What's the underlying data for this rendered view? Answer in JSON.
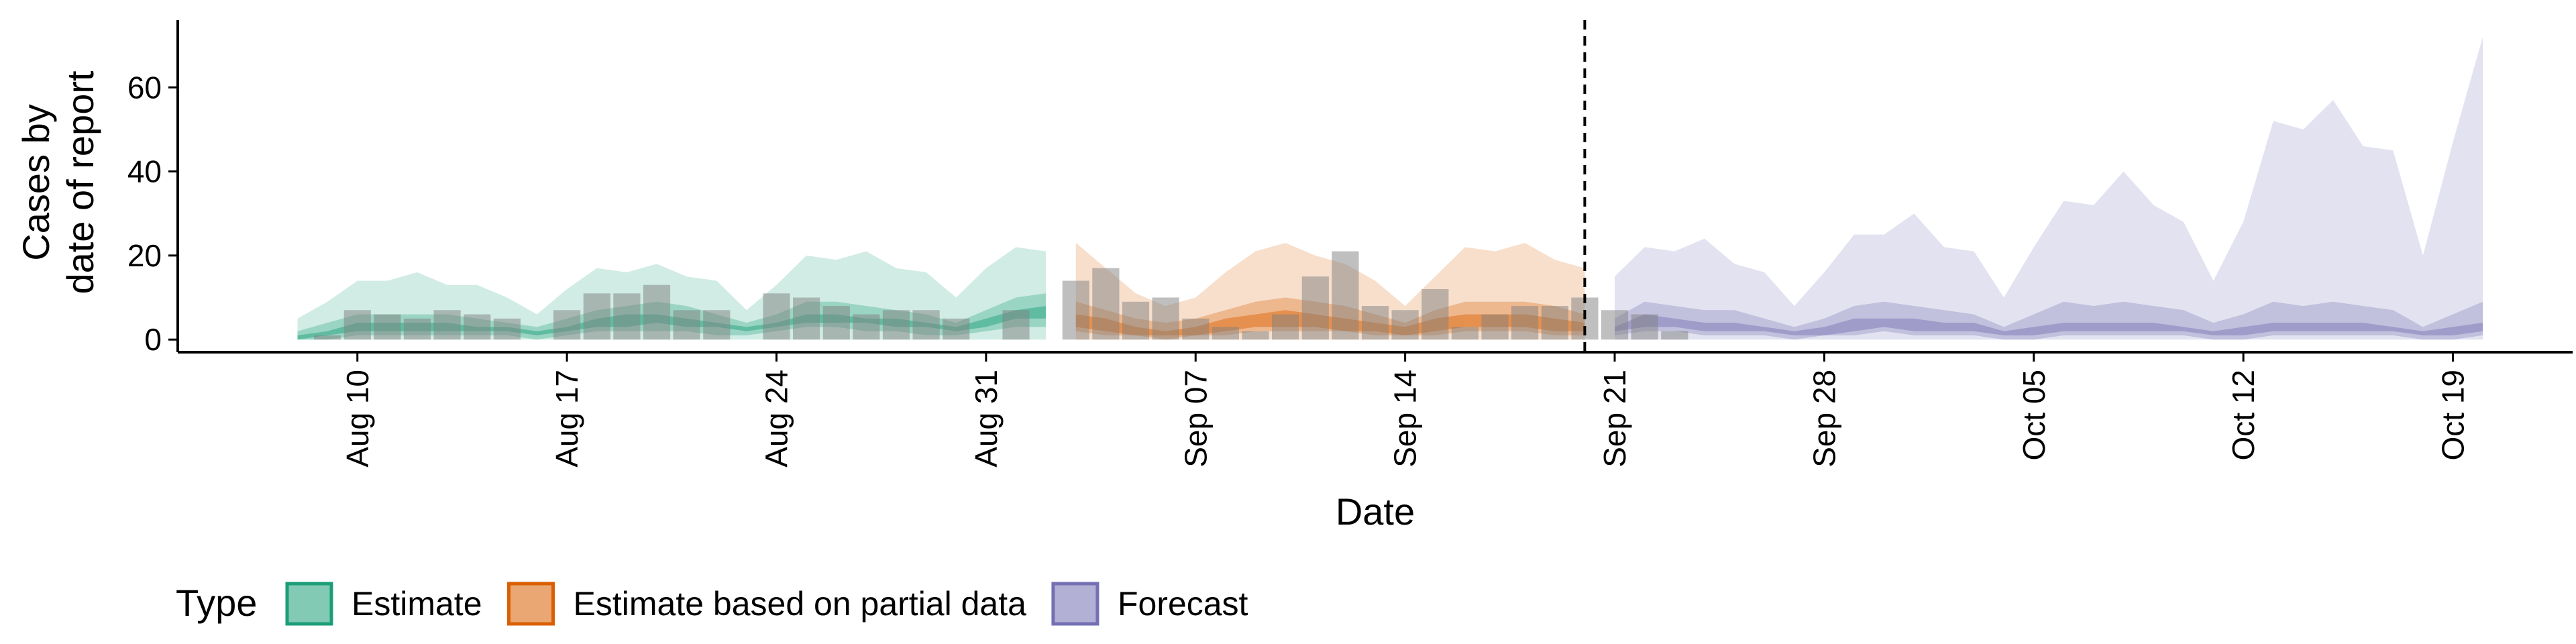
{
  "chart_data": {
    "type": "area",
    "title": "",
    "xlabel": "Date",
    "ylabel_lines": [
      "Cases by",
      "date of report"
    ],
    "ylim": [
      -3,
      76
    ],
    "y_ticks": [
      0,
      20,
      40,
      60
    ],
    "x_ticks": [
      {
        "date": "2020-08-10",
        "label": "Aug 10"
      },
      {
        "date": "2020-08-17",
        "label": "Aug 17"
      },
      {
        "date": "2020-08-24",
        "label": "Aug 24"
      },
      {
        "date": "2020-08-31",
        "label": "Aug 31"
      },
      {
        "date": "2020-09-07",
        "label": "Sep 07"
      },
      {
        "date": "2020-09-14",
        "label": "Sep 14"
      },
      {
        "date": "2020-09-21",
        "label": "Sep 21"
      },
      {
        "date": "2020-09-28",
        "label": "Sep 28"
      },
      {
        "date": "2020-10-05",
        "label": "Oct 05"
      },
      {
        "date": "2020-10-12",
        "label": "Oct 12"
      },
      {
        "date": "2020-10-19",
        "label": "Oct 19"
      }
    ],
    "xlim": [
      "2020-08-04",
      "2020-10-23"
    ],
    "vline_date": "2020-09-20",
    "grid": false,
    "legend": {
      "title": "Type",
      "placement": "bottom-left"
    },
    "colors": {
      "Estimate": "#1b9e77",
      "Estimate based on partial data": "#d95f02",
      "Forecast": "#7570b3",
      "bars": "#808080"
    },
    "observed_cases": {
      "start": "2020-08-09",
      "values": [
        1,
        7,
        6,
        5,
        7,
        6,
        5,
        0,
        7,
        11,
        11,
        13,
        7,
        7,
        0,
        11,
        10,
        8,
        6,
        7,
        7,
        5,
        0,
        7,
        0,
        14,
        17,
        9,
        10,
        5,
        3,
        2,
        6,
        15,
        21,
        8,
        7,
        12,
        3,
        6,
        8,
        8,
        10,
        7,
        6,
        2
      ]
    },
    "series": [
      {
        "name": "Estimate",
        "start": "2020-08-08",
        "outer_upper": [
          5,
          9,
          14,
          14,
          16,
          13,
          13,
          10,
          6,
          12,
          17,
          16,
          18,
          15,
          14,
          7,
          13,
          20,
          19,
          21,
          17,
          16,
          10,
          17,
          22,
          21
        ],
        "outer_lower": [
          0,
          0,
          0,
          0,
          0,
          0,
          0,
          0,
          0,
          0,
          0,
          0,
          0,
          0,
          0,
          0,
          0,
          0,
          0,
          0,
          0,
          0,
          0,
          0,
          0,
          0
        ],
        "inner_upper": [
          2,
          4,
          6,
          6,
          6,
          6,
          5,
          4,
          3,
          5,
          7,
          8,
          9,
          8,
          6,
          4,
          6,
          9,
          9,
          8,
          7,
          6,
          4,
          7,
          10,
          11
        ],
        "inner_lower": [
          0,
          0,
          1,
          1,
          1,
          1,
          1,
          1,
          0,
          1,
          2,
          2,
          2,
          2,
          1,
          1,
          2,
          3,
          3,
          2,
          2,
          1,
          1,
          2,
          3,
          3
        ],
        "mid_upper": [
          1,
          2,
          4,
          4,
          4,
          4,
          3,
          3,
          2,
          3,
          5,
          6,
          6,
          5,
          4,
          3,
          4,
          6,
          6,
          5,
          5,
          4,
          3,
          5,
          7,
          8
        ],
        "mid_lower": [
          0,
          1,
          2,
          2,
          2,
          2,
          2,
          2,
          1,
          2,
          3,
          3,
          4,
          3,
          3,
          2,
          3,
          4,
          4,
          4,
          3,
          3,
          2,
          3,
          5,
          5
        ]
      },
      {
        "name": "Estimate based on partial data",
        "start": "2020-09-03",
        "outer_upper": [
          23,
          17,
          11,
          8,
          10,
          16,
          21,
          23,
          20,
          18,
          14,
          8,
          15,
          22,
          21,
          23,
          19,
          17
        ],
        "outer_lower": [
          0,
          0,
          0,
          0,
          0,
          0,
          0,
          0,
          0,
          0,
          0,
          0,
          0,
          0,
          0,
          0,
          0,
          0
        ],
        "inner_upper": [
          9,
          7,
          5,
          4,
          5,
          7,
          9,
          10,
          9,
          8,
          6,
          4,
          7,
          9,
          9,
          9,
          8,
          6
        ],
        "inner_lower": [
          2,
          1,
          1,
          0,
          1,
          1,
          2,
          2,
          2,
          2,
          1,
          1,
          1,
          2,
          2,
          2,
          1,
          1
        ],
        "mid_upper": [
          6,
          5,
          3,
          2,
          3,
          5,
          6,
          7,
          6,
          5,
          4,
          3,
          5,
          6,
          6,
          6,
          5,
          4
        ],
        "mid_lower": [
          3,
          2,
          1,
          1,
          1,
          2,
          3,
          3,
          3,
          2,
          2,
          1,
          2,
          3,
          3,
          3,
          2,
          2
        ]
      },
      {
        "name": "Forecast",
        "start": "2020-09-21",
        "outer_upper": [
          15,
          22,
          21,
          24,
          18,
          16,
          8,
          16,
          25,
          25,
          30,
          22,
          21,
          10,
          22,
          33,
          32,
          40,
          32,
          28,
          14,
          28,
          52,
          50,
          57,
          46,
          45,
          20,
          47,
          72
        ],
        "outer_lower": [
          0,
          0,
          0,
          0,
          0,
          0,
          0,
          0,
          0,
          0,
          0,
          0,
          0,
          0,
          0,
          0,
          0,
          0,
          0,
          0,
          0,
          0,
          0,
          0,
          0,
          0,
          0,
          0,
          0,
          0
        ],
        "inner_upper": [
          5,
          9,
          8,
          7,
          7,
          5,
          3,
          5,
          8,
          9,
          8,
          7,
          6,
          3,
          6,
          9,
          8,
          9,
          8,
          7,
          4,
          6,
          9,
          8,
          9,
          8,
          7,
          3,
          6,
          9
        ],
        "inner_lower": [
          1,
          2,
          2,
          1,
          1,
          1,
          0,
          1,
          1,
          2,
          1,
          1,
          1,
          0,
          0,
          1,
          1,
          1,
          1,
          1,
          0,
          0,
          1,
          1,
          1,
          1,
          1,
          0,
          0,
          1
        ],
        "mid_upper": [
          3,
          6,
          5,
          4,
          4,
          3,
          2,
          3,
          5,
          5,
          5,
          4,
          4,
          2,
          3,
          4,
          4,
          4,
          4,
          3,
          2,
          3,
          4,
          4,
          4,
          4,
          3,
          2,
          3,
          4
        ],
        "mid_lower": [
          2,
          3,
          3,
          2,
          2,
          2,
          1,
          1,
          2,
          3,
          2,
          2,
          2,
          1,
          1,
          2,
          2,
          2,
          2,
          2,
          1,
          1,
          2,
          2,
          2,
          2,
          2,
          1,
          1,
          2
        ]
      }
    ]
  }
}
